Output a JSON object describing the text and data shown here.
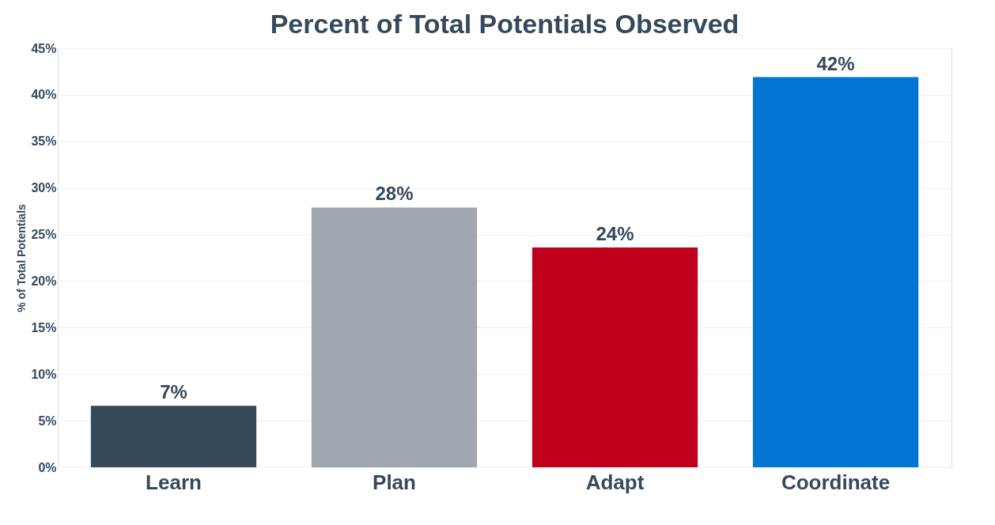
{
  "chart_data": {
    "type": "bar",
    "title": "Percent of Total Potentials Observed",
    "ylabel": "% of Total Potentials",
    "categories": [
      "Learn",
      "Plan",
      "Adapt",
      "Coordinate"
    ],
    "values": [
      6.6,
      27.9,
      23.6,
      41.9
    ],
    "colors": [
      "#36495a",
      "#9fa6ad",
      "#c0001a",
      "#0075d3"
    ],
    "value_labels": [
      "7%",
      "28%",
      "24%",
      "42%"
    ],
    "ylim": [
      0,
      45
    ],
    "yticks": [
      {
        "value": 0,
        "label": "0%"
      },
      {
        "value": 5,
        "label": "5%"
      },
      {
        "value": 10,
        "label": "10%"
      },
      {
        "value": 15,
        "label": "15%"
      },
      {
        "value": 20,
        "label": "20%"
      },
      {
        "value": 25,
        "label": "25%"
      },
      {
        "value": 30,
        "label": "30%"
      },
      {
        "value": 35,
        "label": "35%"
      },
      {
        "value": 40,
        "label": "40%"
      },
      {
        "value": 45,
        "label": "45%"
      }
    ],
    "grid": "y"
  }
}
